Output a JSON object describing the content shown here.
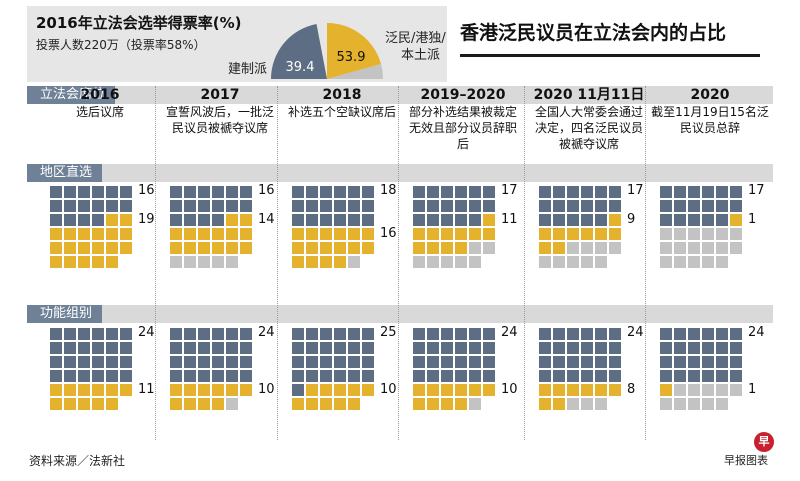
{
  "vote": {
    "title": "2016年立法会选举得票率(%)",
    "turnout": "投票人数220万（投票率58%）",
    "pro_label": "建制派",
    "pro_value": "39.4",
    "dem_label_line1": "泛民/港独/",
    "dem_label_line2": "本土派",
    "dem_value": "53.9",
    "pro_pct": 39.4,
    "dem_pct": 53.9
  },
  "headline": "香港泛民议员在立法会内的占比",
  "sections": {
    "seats": "立法会席位",
    "geo": "地区直选",
    "func": "功能组别"
  },
  "columns": [
    {
      "year": "2016",
      "desc": "选后议席"
    },
    {
      "year": "2017",
      "desc": "宣誓风波后，一批泛民议员被褫夺议席"
    },
    {
      "year": "2018",
      "desc": "补选五个空缺议席后"
    },
    {
      "year": "2019–2020",
      "desc": "部分补选结果被裁定无效且部分议员辞职后"
    },
    {
      "year": "2020 11月11日",
      "desc": "全国人大常委会通过决定，四名泛民议员被褫夺议席"
    },
    {
      "year": "2020",
      "desc": "截至11月19日15名泛民议员总辞"
    }
  ],
  "seat_data": {
    "geo": [
      {
        "pro": 16,
        "dem": 19,
        "vacant": 0
      },
      {
        "pro": 16,
        "dem": 14,
        "vacant": 5
      },
      {
        "pro": 18,
        "dem": 16,
        "vacant": 1
      },
      {
        "pro": 17,
        "dem": 11,
        "vacant": 7
      },
      {
        "pro": 17,
        "dem": 9,
        "vacant": 9
      },
      {
        "pro": 17,
        "dem": 1,
        "vacant": 17
      }
    ],
    "func": [
      {
        "pro": 24,
        "dem": 11,
        "vacant": 0
      },
      {
        "pro": 24,
        "dem": 10,
        "vacant": 1
      },
      {
        "pro": 25,
        "dem": 10,
        "vacant": 0
      },
      {
        "pro": 24,
        "dem": 10,
        "vacant": 1
      },
      {
        "pro": 24,
        "dem": 8,
        "vacant": 3
      },
      {
        "pro": 24,
        "dem": 1,
        "vacant": 10
      }
    ]
  },
  "counts": {
    "geo_pro": [
      "16",
      "16",
      "18",
      "17",
      "17",
      "17"
    ],
    "geo_dem": [
      "19",
      "14",
      "16",
      "11",
      "9",
      "1"
    ],
    "func_pro": [
      "24",
      "24",
      "25",
      "24",
      "24",
      "24"
    ],
    "func_dem": [
      "11",
      "10",
      "10",
      "10",
      "8",
      "1"
    ]
  },
  "colors": {
    "pro": "#5d6e84",
    "dem": "#e4b22c",
    "vacant": "#c3c3c3",
    "section_label": "#6f8197"
  },
  "footer": {
    "source": "资料来源／法新社",
    "credit": "早报图表",
    "logo": "早"
  }
}
